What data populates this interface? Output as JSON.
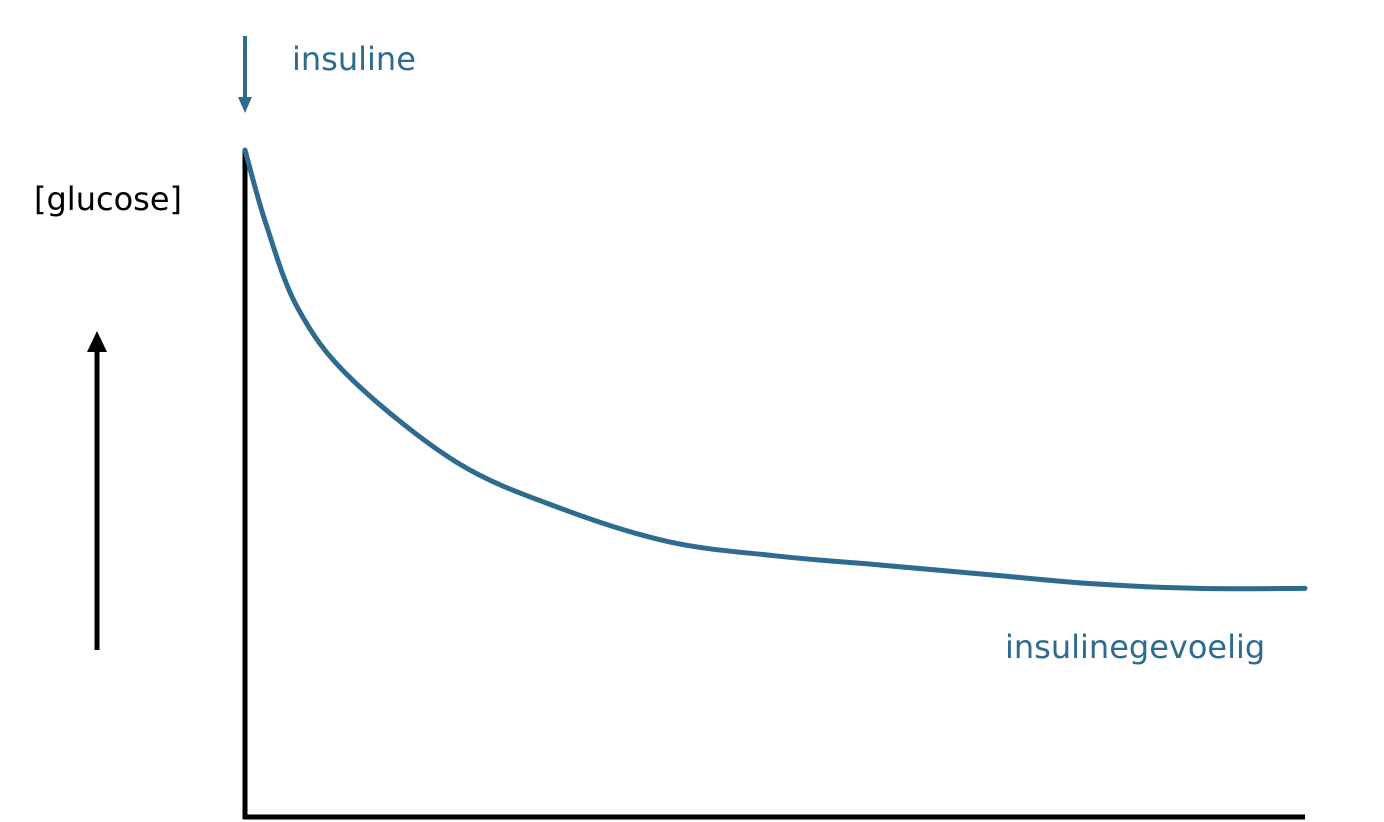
{
  "chart_data": {
    "type": "line",
    "title": "",
    "xlabel": "",
    "ylabel": "[glucose]",
    "annotations": {
      "dose_label": "insuline"
    },
    "series": [
      {
        "name": "insulinegevoelig",
        "color": "#2e6b8f",
        "x": [
          0,
          0.02,
          0.05,
          0.1,
          0.2,
          0.3,
          0.4,
          0.5,
          0.6,
          0.7,
          0.8,
          0.9,
          1.0
        ],
        "y": [
          1.0,
          0.84,
          0.66,
          0.51,
          0.33,
          0.23,
          0.16,
          0.13,
          0.11,
          0.09,
          0.07,
          0.06,
          0.06
        ]
      }
    ],
    "xlim": [
      0,
      1
    ],
    "ylim": [
      -0.43,
      1.0
    ],
    "grid": false
  },
  "colors": {
    "axis": "#000000",
    "accent": "#2e6b8f"
  }
}
